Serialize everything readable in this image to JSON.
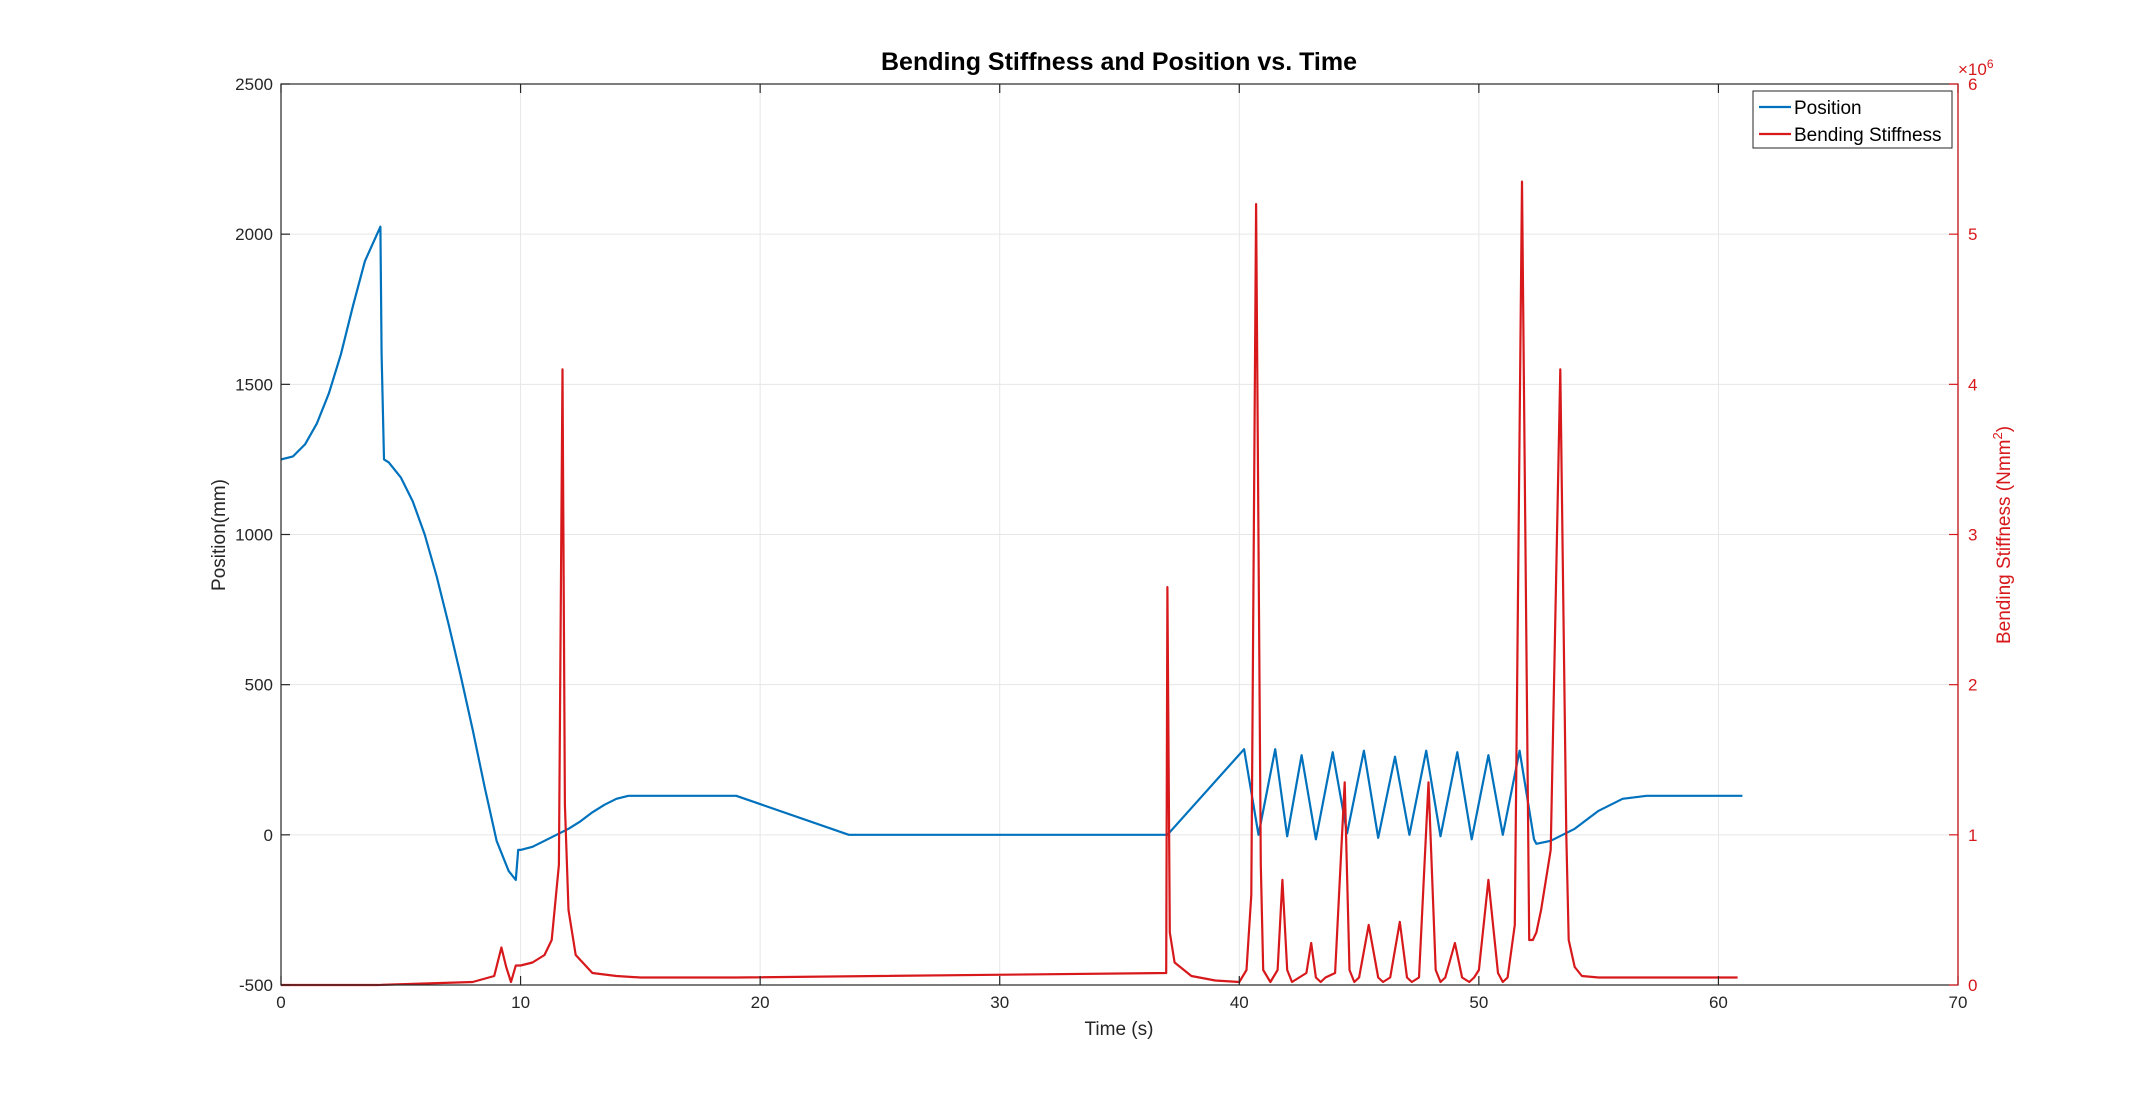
{
  "chart_data": {
    "type": "line",
    "title": "Bending Stiffness and Position vs. Time",
    "xlabel": "Time (s)",
    "ylabel_left": "Position(mm)",
    "ylabel_right_prefix": "Bending Stiffness (Nmm",
    "ylabel_right_sup": "2",
    "ylabel_right_suffix": ")",
    "right_exponent_base": "×10",
    "right_exponent_power": "6",
    "xlim": [
      0,
      70
    ],
    "ylim_left": [
      -500,
      2500
    ],
    "ylim_right": [
      0,
      6
    ],
    "x_ticks": [
      "0",
      "10",
      "20",
      "30",
      "40",
      "50",
      "60",
      "70"
    ],
    "y_left_ticks": [
      "-500",
      "0",
      "500",
      "1000",
      "1500",
      "2000",
      "2500"
    ],
    "y_right_ticks": [
      "0",
      "1",
      "2",
      "3",
      "4",
      "5",
      "6"
    ],
    "grid": true,
    "legend_position": "top-right",
    "colors": {
      "position": "#0072BD",
      "stiffness": "#D7191C",
      "axis": "#262626",
      "right_axis": "#D7191C",
      "grid": "#e6e6e6"
    },
    "series": [
      {
        "name": "Position",
        "axis": "left",
        "x": [
          0,
          0.5,
          1,
          1.5,
          2,
          2.5,
          3,
          3.5,
          4.15,
          4.2,
          4.3,
          4.5,
          5,
          5.5,
          6,
          6.5,
          7,
          7.5,
          8,
          8.5,
          9,
          9.5,
          9.8,
          9.9,
          10,
          10.5,
          11,
          11.5,
          12,
          12.5,
          13,
          13.5,
          14,
          14.5,
          15,
          19,
          23.7,
          37,
          40.2,
          40.8,
          41.5,
          42,
          42.6,
          43.2,
          43.9,
          44.5,
          45.2,
          45.8,
          46.5,
          47.1,
          47.8,
          48.4,
          49.1,
          49.7,
          50.4,
          51,
          51.7,
          52.3,
          52.4,
          53,
          54,
          55,
          56,
          57,
          61
        ],
        "values": [
          1250,
          1260,
          1300,
          1370,
          1470,
          1600,
          1760,
          1910,
          2025,
          1600,
          1250,
          1240,
          1190,
          1110,
          1000,
          860,
          700,
          530,
          350,
          160,
          -20,
          -120,
          -150,
          -50,
          -50,
          -40,
          -20,
          0,
          20,
          45,
          75,
          100,
          120,
          130,
          130,
          130,
          0,
          0,
          285,
          0,
          285,
          -5,
          265,
          -15,
          275,
          5,
          280,
          -10,
          260,
          0,
          280,
          -5,
          275,
          -15,
          265,
          0,
          280,
          -15,
          -30,
          -20,
          20,
          80,
          120,
          130,
          130
        ]
      },
      {
        "name": "Bending Stiffness",
        "axis": "right",
        "x": [
          0,
          4,
          8,
          8.9,
          9.2,
          9.4,
          9.6,
          9.8,
          10,
          10.5,
          11,
          11.3,
          11.6,
          11.75,
          11.85,
          12,
          12.3,
          13,
          14,
          15,
          19,
          36.95,
          37,
          37.1,
          37.3,
          38,
          39,
          40,
          40.3,
          40.5,
          40.7,
          40.9,
          41,
          41.3,
          41.6,
          41.8,
          42,
          42.2,
          42.5,
          42.8,
          43,
          43.2,
          43.4,
          43.6,
          44,
          44.4,
          44.6,
          44.8,
          45,
          45.4,
          45.8,
          46,
          46.3,
          46.7,
          47,
          47.2,
          47.5,
          47.9,
          48.2,
          48.4,
          48.6,
          49,
          49.3,
          49.6,
          49.8,
          50,
          50.4,
          50.8,
          51,
          51.2,
          51.5,
          51.8,
          52.1,
          52.25,
          52.4,
          52.6,
          53,
          53.4,
          53.65,
          53.75,
          54,
          54.3,
          55,
          56,
          57,
          60.8
        ],
        "values": [
          0,
          0,
          0.02,
          0.06,
          0.25,
          0.12,
          0.02,
          0.13,
          0.13,
          0.15,
          0.2,
          0.3,
          0.8,
          4.1,
          1.2,
          0.5,
          0.2,
          0.08,
          0.06,
          0.05,
          0.05,
          0.08,
          2.65,
          0.35,
          0.15,
          0.06,
          0.03,
          0.02,
          0.1,
          0.6,
          5.2,
          0.8,
          0.1,
          0.02,
          0.1,
          0.7,
          0.1,
          0.02,
          0.05,
          0.08,
          0.28,
          0.05,
          0.02,
          0.05,
          0.08,
          1.35,
          0.1,
          0.02,
          0.05,
          0.4,
          0.05,
          0.02,
          0.05,
          0.42,
          0.05,
          0.02,
          0.05,
          1.35,
          0.1,
          0.02,
          0.05,
          0.28,
          0.05,
          0.02,
          0.05,
          0.1,
          0.7,
          0.08,
          0.02,
          0.05,
          0.4,
          5.35,
          0.3,
          0.3,
          0.35,
          0.5,
          0.9,
          4.1,
          1.0,
          0.3,
          0.12,
          0.06,
          0.05,
          0.05,
          0.05,
          0.05
        ]
      }
    ]
  }
}
